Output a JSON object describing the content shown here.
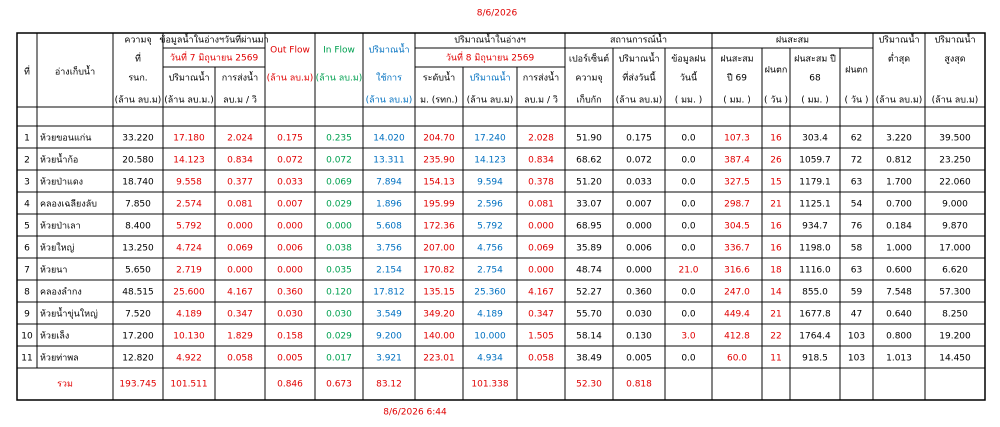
{
  "header": {
    "date": "8/6/2026"
  },
  "table": {
    "header_cells": [
      [
        "ที่"
      ],
      [
        "อ่างเก็บน้ำ"
      ],
      [
        "ความจุ",
        "ที่",
        "รนก.",
        "(ล้าน ลบ.ม)"
      ],
      [
        "ข้อมูลน้ำในอ่างฯวันที่ผ่านมา"
      ],
      [
        "วันที่ 7 มิถุนายน 2569"
      ],
      [
        "ปริมาณน้ำ",
        "(ล้าน ลบ.ม.)"
      ],
      [
        "การส่งน้ำ",
        "ลบ.ม / วิ"
      ],
      [
        "Out Flow",
        "(ล้าน ลบ.ม)"
      ],
      [
        "In Flow",
        "(ล้าน ลบ.ม)"
      ],
      [
        "ปริมาณน้ำ",
        "ใช้การ",
        "(ล้าน ลบ.ม)"
      ],
      [
        "ปริมาณน้ำในอ่างฯ"
      ],
      [
        "วันที่ 8 มิถุนายน 2569"
      ],
      [
        "ระดับน้ำ",
        "ม. (รทก.)"
      ],
      [
        "ปริมาณน้ำ",
        "(ล้าน ลบ.ม)"
      ],
      [
        "การส่งน้ำ",
        "ลบ.ม / วิ"
      ],
      [
        "สถานการณ์น้ำ"
      ],
      [
        "เปอร์เซ็นต์",
        "ความจุ",
        "เก็บกัก"
      ],
      [
        "ปริมาณน้ำ",
        "ที่ส่งวันนี้",
        "(ล้าน ลบ.ม)"
      ],
      [
        "ข้อมูลฝน",
        "วันนี้",
        "( มม. )"
      ],
      [
        "ฝนสะสม"
      ],
      [
        "ฝนสะสม",
        "ปี 69",
        "( มม. )"
      ],
      [
        "ฝนตก",
        "( วัน )"
      ],
      [
        "ฝนสะสม ปี",
        "68",
        "( มม. )"
      ],
      [
        "ฝนตก",
        "( วัน )"
      ],
      [
        "ปริมาณน้ำ",
        "ต่ำสุด",
        "(ล้าน ลบ.ม)"
      ],
      [
        "ปริมาณน้ำ",
        "สูงสุด",
        "(ล้าน ลบ.ม)"
      ]
    ],
    "rows": [
      [
        1,
        "ห้วยขอนแก่น",
        "33.220",
        "17.180",
        "2.024",
        "0.175",
        "0.235",
        "14.020",
        "204.70",
        "17.240",
        "2.028",
        "51.90",
        "0.175",
        "0.0",
        "107.3",
        "16",
        "303.4",
        "62",
        "3.220",
        "39.500"
      ],
      [
        2,
        "ห้วยน้ำก้อ",
        "20.580",
        "14.123",
        "0.834",
        "0.072",
        "0.072",
        "13.311",
        "235.90",
        "14.123",
        "0.834",
        "68.62",
        "0.072",
        "0.0",
        "387.4",
        "26",
        "1059.7",
        "72",
        "0.812",
        "23.250"
      ],
      [
        3,
        "ห้วยป่าแดง",
        "18.740",
        "9.558",
        "0.377",
        "0.033",
        "0.069",
        "7.894",
        "154.13",
        "9.594",
        "0.378",
        "51.20",
        "0.033",
        "0.0",
        "327.5",
        "15",
        "1179.1",
        "63",
        "1.700",
        "22.060"
      ],
      [
        4,
        "คลองเฉลียงลับ",
        "7.850",
        "2.574",
        "0.081",
        "0.007",
        "0.029",
        "1.896",
        "195.99",
        "2.596",
        "0.081",
        "33.07",
        "0.007",
        "0.0",
        "298.7",
        "21",
        "1125.1",
        "54",
        "0.700",
        "9.000"
      ],
      [
        5,
        "ห้วยป่าเลา",
        "8.400",
        "5.792",
        "0.000",
        "0.000",
        "0.000",
        "5.608",
        "172.36",
        "5.792",
        "0.000",
        "68.95",
        "0.000",
        "0.0",
        "304.5",
        "16",
        "934.7",
        "76",
        "0.184",
        "9.870"
      ],
      [
        6,
        "ห้วยใหญ่",
        "13.250",
        "4.724",
        "0.069",
        "0.006",
        "0.038",
        "3.756",
        "207.00",
        "4.756",
        "0.069",
        "35.89",
        "0.006",
        "0.0",
        "336.7",
        "16",
        "1198.0",
        "58",
        "1.000",
        "17.000"
      ],
      [
        7,
        "ห้วยนา",
        "5.650",
        "2.719",
        "0.000",
        "0.000",
        "0.035",
        "2.154",
        "170.82",
        "2.754",
        "0.000",
        "48.74",
        "0.000",
        "21.0",
        "316.6",
        "18",
        "1116.0",
        "63",
        "0.600",
        "6.620"
      ],
      [
        8,
        "คลองลำกง",
        "48.515",
        "25.600",
        "4.167",
        "0.360",
        "0.120",
        "17.812",
        "135.15",
        "25.360",
        "4.167",
        "52.27",
        "0.360",
        "0.0",
        "247.0",
        "14",
        "855.0",
        "59",
        "7.548",
        "57.300"
      ],
      [
        9,
        "ห้วยน้ำขุ่นใหญ่",
        "7.520",
        "4.189",
        "0.347",
        "0.030",
        "0.030",
        "3.549",
        "349.20",
        "4.189",
        "0.347",
        "55.70",
        "0.030",
        "0.0",
        "449.4",
        "21",
        "1677.8",
        "47",
        "0.640",
        "8.250"
      ],
      [
        10,
        "ห้วยเล็ง",
        "17.200",
        "10.130",
        "1.829",
        "0.158",
        "0.029",
        "9.200",
        "140.00",
        "10.000",
        "1.505",
        "58.14",
        "0.130",
        "3.0",
        "412.8",
        "22",
        "1764.4",
        "103",
        "0.800",
        "19.200"
      ],
      [
        11,
        "ห้วยท่าพล",
        "12.820",
        "4.922",
        "0.058",
        "0.005",
        "0.017",
        "3.921",
        "223.01",
        "4.934",
        "0.058",
        "38.49",
        "0.005",
        "0.0",
        "60.0",
        "11",
        "918.5",
        "103",
        "1.013",
        "14.450"
      ]
    ],
    "total": {
      "label": "รวม",
      "capacity": "193.745",
      "volume_prev": "101.511",
      "out_flow": "0.846",
      "in_flow": "0.673",
      "usable": "83.12",
      "volume_today": "101.338",
      "percent": "52.30",
      "release_today": "0.818"
    }
  },
  "footer": {
    "timestamp": "8/6/2026 6:44"
  }
}
